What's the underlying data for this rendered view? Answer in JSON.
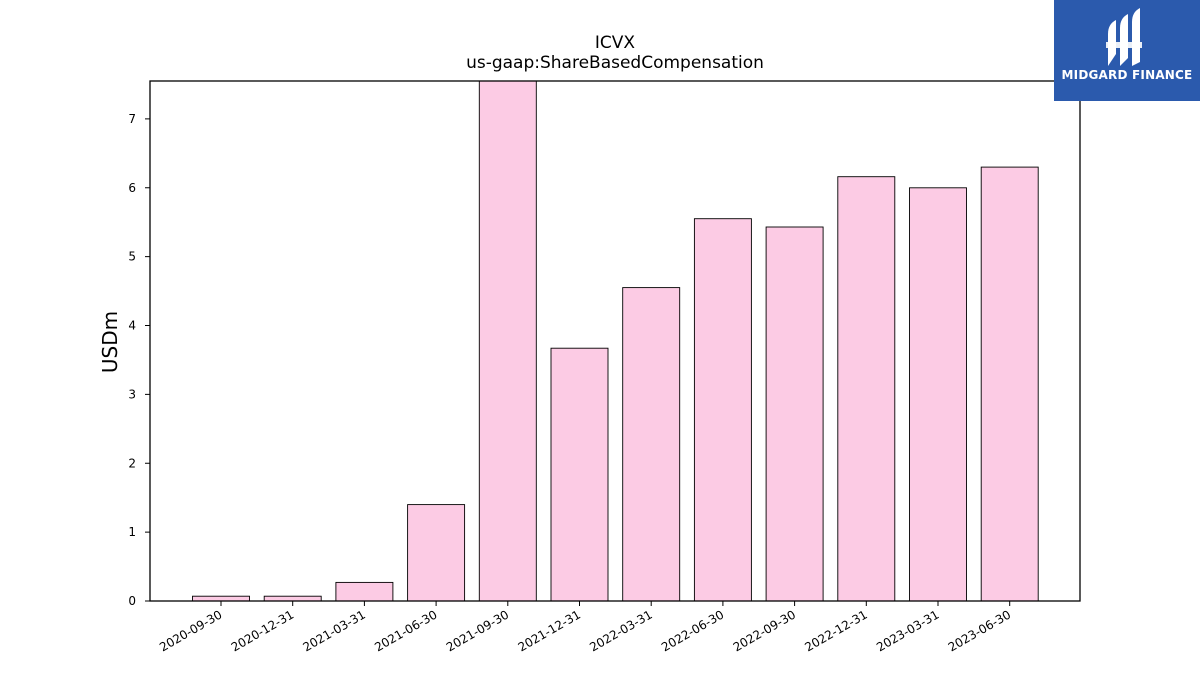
{
  "chart_data": {
    "type": "bar",
    "title": "ICVX",
    "subtitle": "us-gaap:ShareBasedCompensation",
    "xlabel": "",
    "ylabel": "USDm",
    "categories": [
      "2020-09-30",
      "2020-12-31",
      "2021-03-31",
      "2021-06-30",
      "2021-09-30",
      "2021-12-31",
      "2022-03-31",
      "2022-06-30",
      "2022-09-30",
      "2022-12-31",
      "2023-03-31",
      "2023-06-30"
    ],
    "values": [
      0.07,
      0.07,
      0.27,
      1.4,
      7.6,
      3.67,
      4.55,
      5.55,
      5.43,
      6.16,
      6.0,
      6.3
    ],
    "ylim": [
      0,
      7.55
    ],
    "yticks": [
      0,
      1,
      2,
      3,
      4,
      5,
      6,
      7
    ],
    "grid": false,
    "bar_color": "#fccbe4",
    "bar_edge_color": "#000000"
  },
  "logo": {
    "text": "MIDGARD FINANCE",
    "background": "#2b5aad"
  }
}
